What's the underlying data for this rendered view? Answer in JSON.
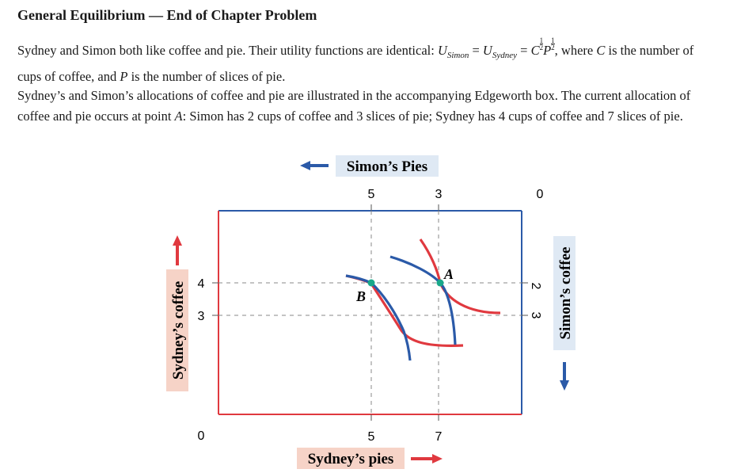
{
  "title": "General Equilibrium — End of Chapter Problem",
  "paragraph1": {
    "intro": "Sydney and Simon both like coffee and pie. Their utility functions are identical: ",
    "u": "U",
    "sub_simon": "Simon",
    "equals": " = ",
    "sub_sydney": "Sydney",
    "eq2": " = ",
    "c": "C",
    "half1": "1 2",
    "p": "P",
    "half2": "1 2",
    "where": ", where ",
    "c2": "C",
    "is": " is the number of cups of coffee, and ",
    "p2": "P",
    "rest": " is the number of slices of pie."
  },
  "paragraph2": {
    "part1": "Sydney’s and Simon’s allocations of coffee and pie are illustrated in the accompanying Edgeworth box. The current allocation of coffee and pie occurs at point ",
    "a": "A",
    "part2": ": Simon has 2 cups of coffee and 3 slices of pie; Sydney has 4 cups of coffee and 7 slices of pie."
  },
  "chart_data": {
    "type": "edgeworth-box",
    "top_axis_label": "Simon’s Pies",
    "top_ticks": [
      "5",
      "3",
      "0"
    ],
    "bottom_axis_label": "Sydney’s pies",
    "bottom_ticks": [
      "5",
      "7"
    ],
    "left_axis_label": "Sydney’s coffee",
    "left_ticks": [
      "4",
      "3",
      "0"
    ],
    "right_axis_label": "Simon’s coffee",
    "right_ticks": [
      "2",
      "3"
    ],
    "points": [
      {
        "label": "A",
        "sydney_pies": 7,
        "sydney_coffee": 4
      },
      {
        "label": "B",
        "sydney_pies": 5,
        "sydney_coffee": 4
      }
    ],
    "colors": {
      "sydney": "#e0393f",
      "simon": "#2b5aa8",
      "point": "#1aa88a",
      "label_bg": "#f6d3c7",
      "top_label_bg": "#dfe9f4"
    }
  }
}
